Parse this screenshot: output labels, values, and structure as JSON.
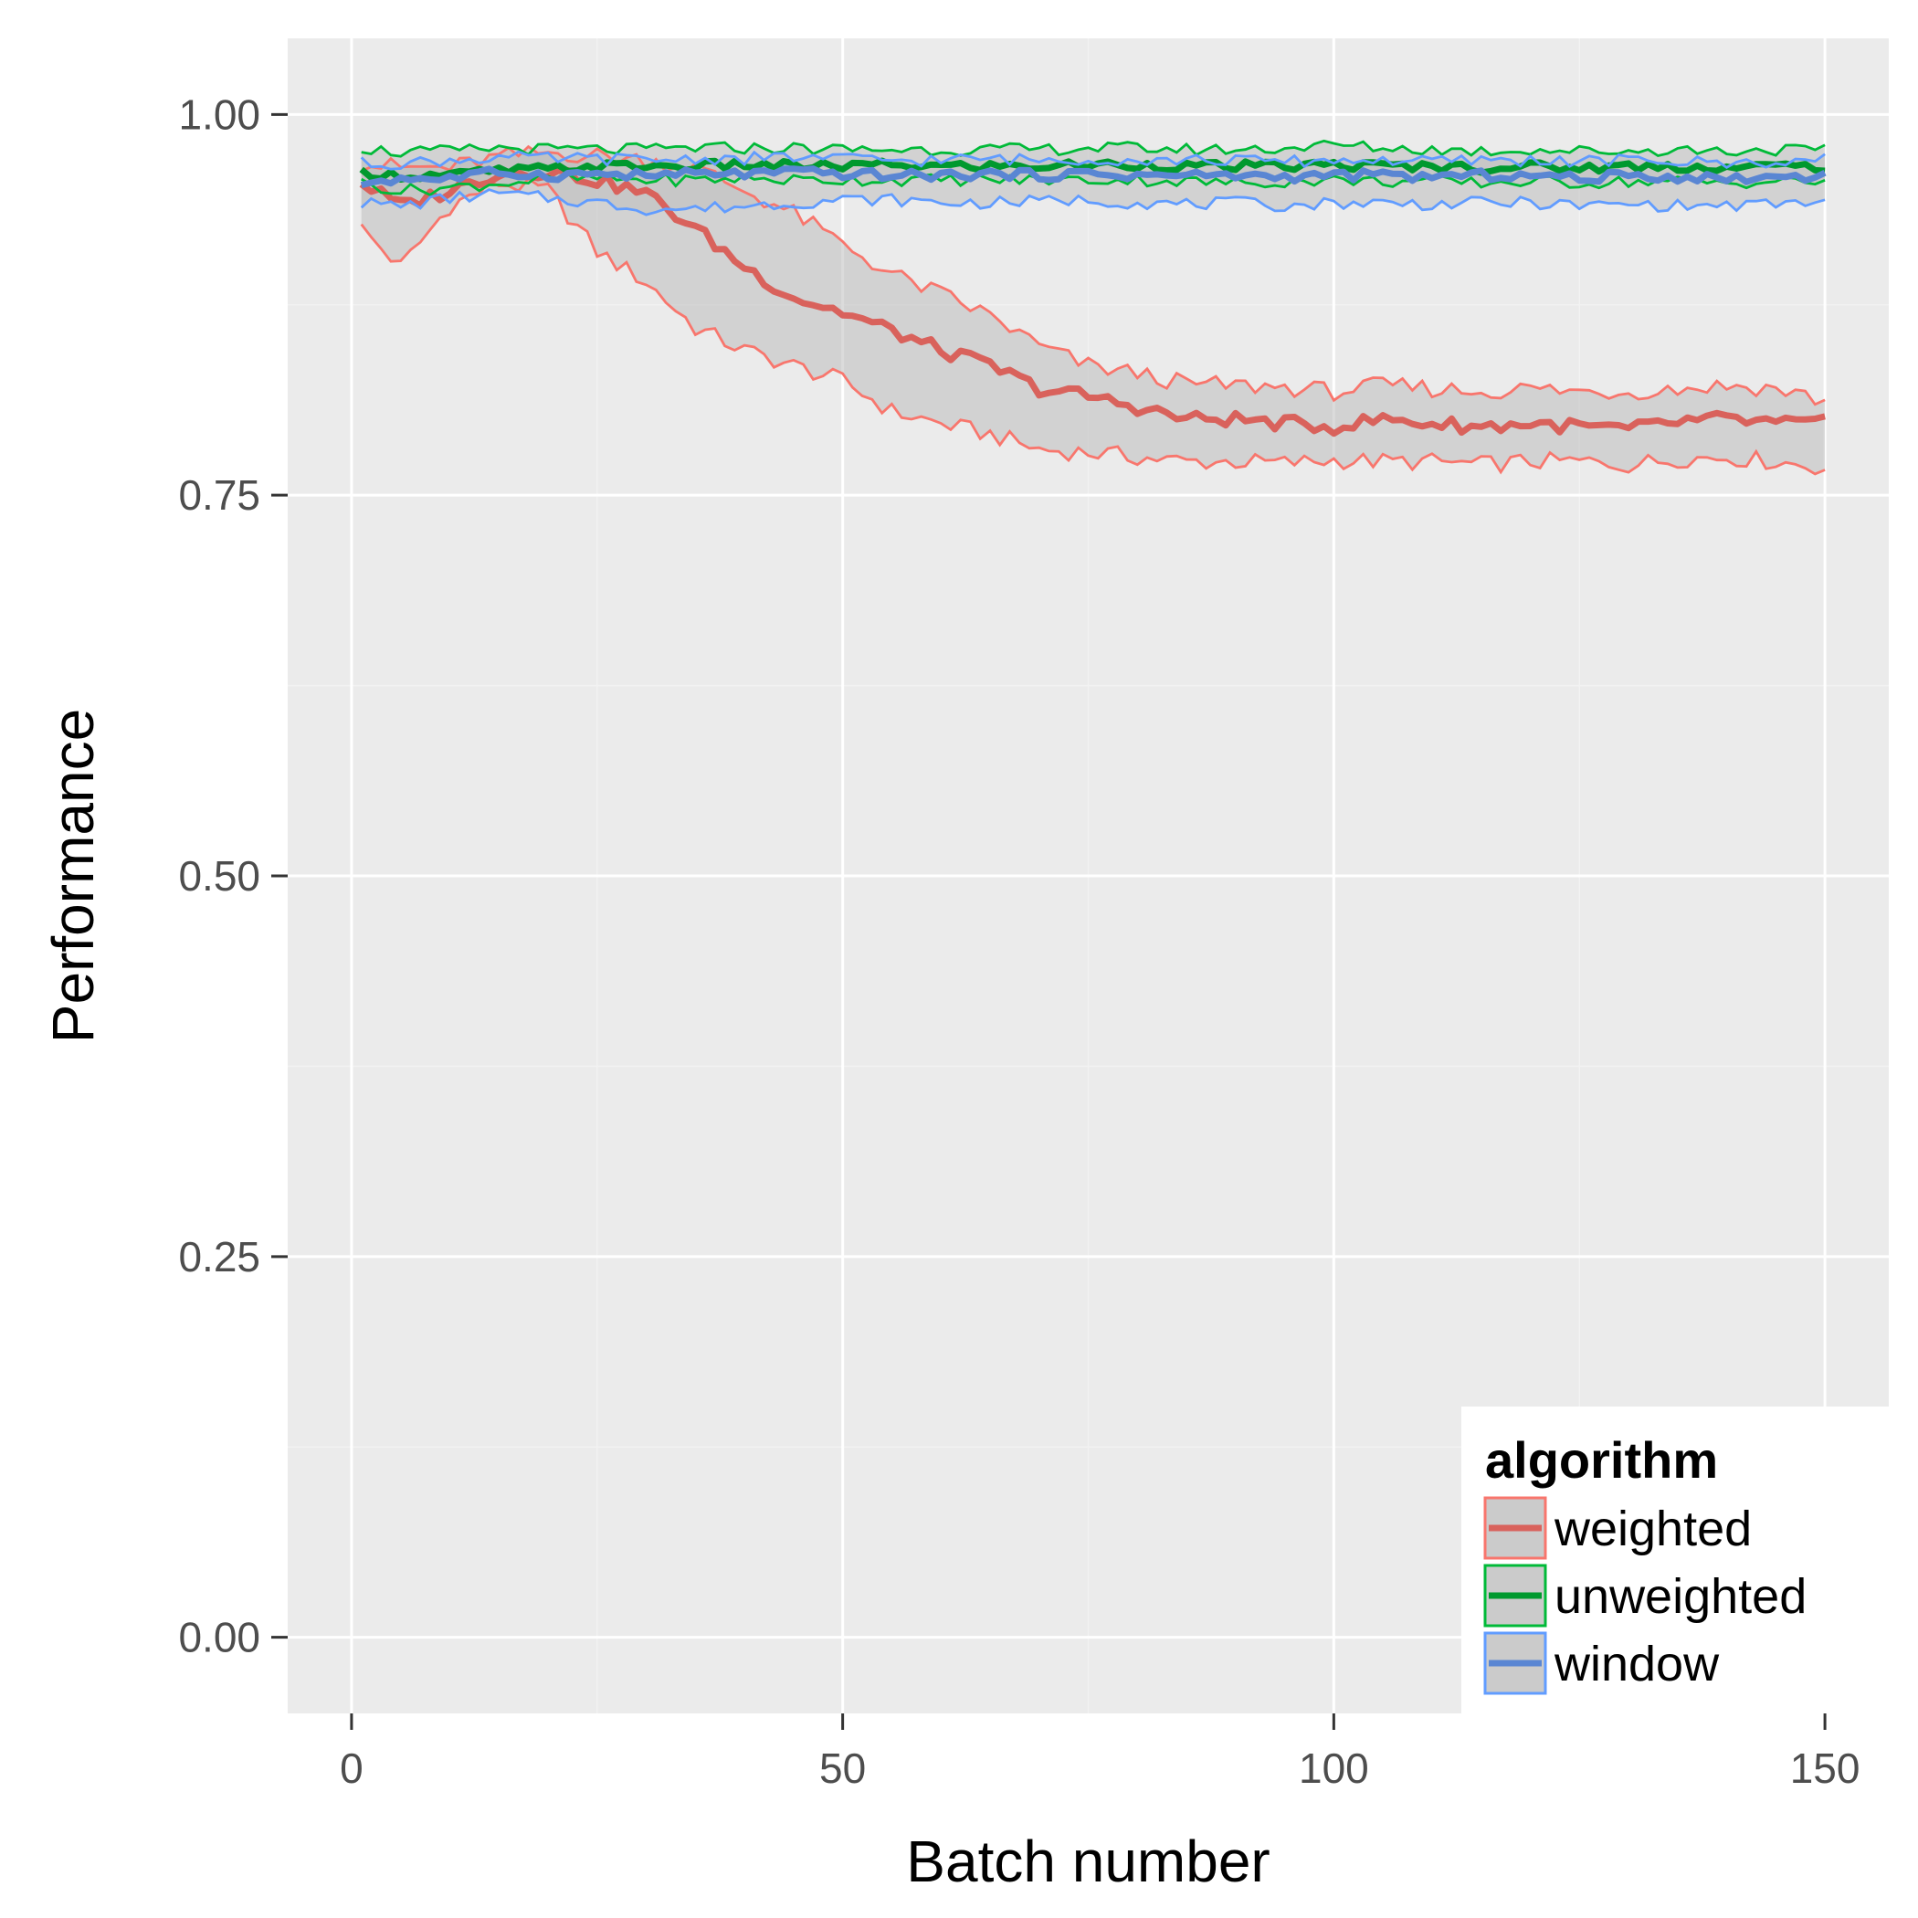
{
  "chart_data": {
    "type": "line",
    "title": "",
    "xlabel": "Batch number",
    "ylabel": "Performance",
    "xlim": [
      -6.5,
      156.5
    ],
    "ylim": [
      -0.05,
      1.05
    ],
    "x_ticks": [
      0,
      50,
      100,
      150
    ],
    "x_tick_labels": [
      "0",
      "50",
      "100",
      "150"
    ],
    "y_ticks": [
      0,
      0.25,
      0.5,
      0.75,
      1
    ],
    "y_tick_labels": [
      "0.00",
      "0.25",
      "0.50",
      "0.75",
      "1.00"
    ],
    "grid": true,
    "ribbon": "band around each series mean (lower/upper)",
    "legend": {
      "title": "algorithm",
      "position": "bottom-right inside plot",
      "entries": [
        "weighted",
        "unweighted",
        "window"
      ]
    },
    "x_range": [
      1,
      150
    ],
    "series": [
      {
        "name": "weighted",
        "color": "#F8766D",
        "line_color": "#D9625C",
        "x": [
          1,
          5,
          10,
          15,
          20,
          25,
          30,
          35,
          40,
          45,
          50,
          55,
          60,
          65,
          70,
          75,
          80,
          85,
          90,
          95,
          100,
          105,
          110,
          115,
          120,
          125,
          130,
          135,
          140,
          145,
          150
        ],
        "mean": [
          0.955,
          0.94,
          0.95,
          0.962,
          0.963,
          0.957,
          0.948,
          0.925,
          0.9,
          0.88,
          0.87,
          0.858,
          0.845,
          0.835,
          0.82,
          0.815,
          0.808,
          0.8,
          0.8,
          0.797,
          0.795,
          0.8,
          0.797,
          0.795,
          0.797,
          0.795,
          0.793,
          0.798,
          0.8,
          0.797,
          0.797
        ],
        "lower": [
          0.925,
          0.9,
          0.94,
          0.955,
          0.95,
          0.91,
          0.89,
          0.86,
          0.845,
          0.835,
          0.825,
          0.805,
          0.797,
          0.79,
          0.78,
          0.778,
          0.775,
          0.772,
          0.772,
          0.771,
          0.773,
          0.772,
          0.772,
          0.77,
          0.772,
          0.772,
          0.77,
          0.774,
          0.775,
          0.772,
          0.768
        ],
        "upper": [
          0.968,
          0.965,
          0.965,
          0.972,
          0.975,
          0.973,
          0.97,
          0.965,
          0.95,
          0.935,
          0.915,
          0.895,
          0.882,
          0.868,
          0.848,
          0.835,
          0.83,
          0.823,
          0.822,
          0.821,
          0.818,
          0.822,
          0.82,
          0.818,
          0.82,
          0.818,
          0.818,
          0.82,
          0.822,
          0.82,
          0.812
        ]
      },
      {
        "name": "unweighted",
        "color": "#00BA38",
        "line_color": "#00992E",
        "x": [
          1,
          5,
          10,
          15,
          20,
          25,
          30,
          35,
          40,
          45,
          50,
          55,
          60,
          65,
          70,
          75,
          80,
          85,
          90,
          95,
          100,
          105,
          110,
          115,
          120,
          125,
          130,
          135,
          140,
          145,
          150
        ],
        "mean": [
          0.962,
          0.96,
          0.96,
          0.963,
          0.964,
          0.966,
          0.966,
          0.966,
          0.967,
          0.966,
          0.966,
          0.967,
          0.966,
          0.966,
          0.966,
          0.967,
          0.967,
          0.966,
          0.966,
          0.966,
          0.967,
          0.966,
          0.966,
          0.965,
          0.966,
          0.965,
          0.966,
          0.966,
          0.965,
          0.966,
          0.966
        ],
        "lower": [
          0.955,
          0.95,
          0.952,
          0.955,
          0.957,
          0.958,
          0.957,
          0.957,
          0.958,
          0.957,
          0.957,
          0.957,
          0.957,
          0.957,
          0.957,
          0.957,
          0.957,
          0.956,
          0.955,
          0.956,
          0.957,
          0.956,
          0.956,
          0.955,
          0.956,
          0.955,
          0.956,
          0.956,
          0.955,
          0.956,
          0.956
        ],
        "upper": [
          0.978,
          0.975,
          0.976,
          0.978,
          0.977,
          0.977,
          0.977,
          0.978,
          0.978,
          0.978,
          0.977,
          0.977,
          0.977,
          0.977,
          0.977,
          0.978,
          0.978,
          0.977,
          0.977,
          0.978,
          0.98,
          0.978,
          0.977,
          0.976,
          0.977,
          0.976,
          0.976,
          0.977,
          0.976,
          0.977,
          0.976
        ]
      },
      {
        "name": "window",
        "color": "#619CFF",
        "line_color": "#5A86D3",
        "x": [
          1,
          5,
          10,
          15,
          20,
          25,
          30,
          35,
          40,
          45,
          50,
          55,
          60,
          65,
          70,
          75,
          80,
          85,
          90,
          95,
          100,
          105,
          110,
          115,
          120,
          125,
          130,
          135,
          140,
          145,
          150
        ],
        "mean": [
          0.955,
          0.958,
          0.958,
          0.962,
          0.96,
          0.961,
          0.96,
          0.961,
          0.961,
          0.962,
          0.961,
          0.96,
          0.96,
          0.961,
          0.96,
          0.961,
          0.96,
          0.96,
          0.96,
          0.959,
          0.96,
          0.96,
          0.959,
          0.96,
          0.96,
          0.958,
          0.96,
          0.959,
          0.958,
          0.959,
          0.96
        ],
        "lower": [
          0.942,
          0.94,
          0.945,
          0.948,
          0.945,
          0.942,
          0.938,
          0.938,
          0.94,
          0.942,
          0.944,
          0.944,
          0.942,
          0.942,
          0.943,
          0.944,
          0.942,
          0.941,
          0.942,
          0.94,
          0.942,
          0.942,
          0.941,
          0.942,
          0.942,
          0.94,
          0.941,
          0.94,
          0.94,
          0.941,
          0.943
        ],
        "upper": [
          0.968,
          0.968,
          0.97,
          0.972,
          0.971,
          0.971,
          0.97,
          0.971,
          0.971,
          0.972,
          0.971,
          0.97,
          0.97,
          0.971,
          0.97,
          0.971,
          0.97,
          0.97,
          0.97,
          0.969,
          0.97,
          0.97,
          0.969,
          0.97,
          0.97,
          0.969,
          0.97,
          0.969,
          0.968,
          0.969,
          0.97
        ]
      }
    ]
  },
  "ribbon_fill": "#BEBEBE",
  "panel_background": "#EBEBEB"
}
